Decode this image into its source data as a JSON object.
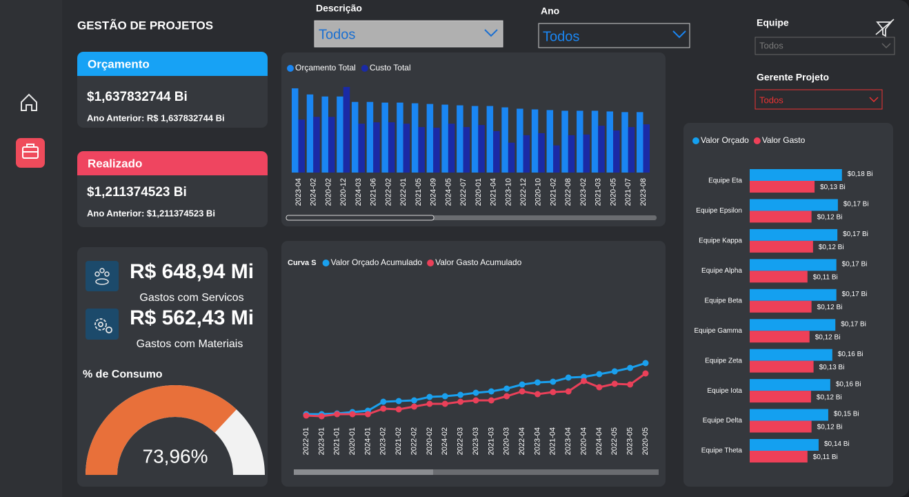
{
  "header": {
    "title": "GESTÃO DE PROJETOS"
  },
  "filters": [
    {
      "label": "Descrição",
      "value": "Todos"
    },
    {
      "label": "Ano",
      "value": "Todos"
    },
    {
      "label": "Equipe",
      "value": "Todos"
    },
    {
      "label": "Gerente Projeto",
      "value": "Todos"
    }
  ],
  "kpis": {
    "orcamento": {
      "title": "Orçamento",
      "value": "$1,637832744 Bi",
      "previous": "Ano Anterior: R$ 1,637832744 Bi"
    },
    "realizado": {
      "title": "Realizado",
      "value": "$1,211374523 Bi",
      "previous": "Ano Anterior: $1,211374523 Bi"
    },
    "servicos": {
      "value": "R$ 648,94 Mi",
      "label": "Gastos com Servicos"
    },
    "materiais": {
      "value": "R$ 562,43 Mi",
      "label": "Gastos com Materiais"
    }
  },
  "chart_data": [
    {
      "type": "bar",
      "legend": "top-left",
      "categories": [
        "2023-04",
        "2024-02",
        "2020-02",
        "2020-12",
        "2024-03",
        "2021-06",
        "2022-02",
        "2022-01",
        "2021-05",
        "2024-09",
        "2024-05",
        "2022-07",
        "2020-01",
        "2021-04",
        "2023-10",
        "2022-12",
        "2020-10",
        "2021-02",
        "2022-08",
        "2023-02",
        "2021-03",
        "2020-05",
        "2021-07",
        "2023-08"
      ],
      "series": [
        {
          "name": "Orçamento Total",
          "color": "#1a86f2",
          "values": [
            124,
            115,
            112,
            112,
            104,
            104,
            103,
            103,
            102,
            101,
            100,
            99,
            98,
            98,
            96,
            94,
            93,
            92,
            91,
            91,
            91,
            90,
            89,
            89
          ]
        },
        {
          "name": "Custo Total",
          "color": "#1a2aa6",
          "values": [
            78,
            82,
            82,
            126,
            72,
            74,
            74,
            72,
            67,
            66,
            72,
            67,
            70,
            61,
            44,
            55,
            58,
            40,
            55,
            56,
            69,
            62,
            67,
            71
          ]
        }
      ]
    },
    {
      "type": "line",
      "title": "Curva S",
      "legend": "top-left",
      "categories": [
        "2022-01",
        "2023-01",
        "2021-01",
        "2020-01",
        "2024-01",
        "2023-02",
        "2021-02",
        "2022-02",
        "2020-02",
        "2024-02",
        "2022-03",
        "2023-03",
        "2021-03",
        "2020-03",
        "2022-04",
        "2023-04",
        "2021-04",
        "2023-04",
        "2020-04",
        "2024-04",
        "2022-05",
        "2023-05",
        "2020-05"
      ],
      "series": [
        {
          "name": "Valor Orçado Acumulado",
          "color": "#1aa0ee",
          "values": [
            20,
            20,
            21,
            23,
            25,
            38,
            39,
            40,
            45,
            46,
            48,
            51,
            53,
            57,
            63,
            66,
            67,
            73,
            74,
            78,
            82,
            87,
            94
          ]
        },
        {
          "name": "Valor Gasto Acumulado",
          "color": "#ea4059",
          "values": [
            18,
            17,
            20,
            20,
            20,
            28,
            27,
            31,
            35,
            35,
            38,
            40,
            40,
            46,
            53,
            49,
            52,
            53,
            68,
            59,
            64,
            63,
            79
          ]
        }
      ]
    },
    {
      "type": "gauge",
      "title": "% de Consumo",
      "value": 73.96,
      "value_label": "73,96%",
      "range": [
        0,
        100
      ],
      "colors": [
        "#e8703a",
        "#f2f2f2"
      ]
    },
    {
      "type": "hbar",
      "legend": "top-left",
      "categories": [
        "Equipe Eta",
        "Equipe Epsilon",
        "Equipe Kappa",
        "Equipe Alpha",
        "Equipe Beta",
        "Equipe Gamma",
        "Equipe Zeta",
        "Equipe Iota",
        "Equipe Delta",
        "Equipe Theta"
      ],
      "series": [
        {
          "name": "Valor Orçado",
          "color": "#14a0f0",
          "values": [
            0.182,
            0.174,
            0.173,
            0.171,
            0.171,
            0.169,
            0.163,
            0.159,
            0.155,
            0.136
          ],
          "value_labels": [
            "$0,18 Bi",
            "$0,17 Bi",
            "$0,17 Bi",
            "$0,17 Bi",
            "$0,17 Bi",
            "$0,17 Bi",
            "$0,16 Bi",
            "$0,16 Bi",
            "$0,15 Bi",
            "$0,14 Bi"
          ]
        },
        {
          "name": "Valor Gasto",
          "color": "#ee4058",
          "values": [
            0.128,
            0.122,
            0.125,
            0.114,
            0.122,
            0.118,
            0.126,
            0.121,
            0.122,
            0.114
          ],
          "value_labels": [
            "$0,13 Bi",
            "$0,12 Bi",
            "$0,12 Bi",
            "$0,11 Bi",
            "$0,12 Bi",
            "$0,12 Bi",
            "$0,13 Bi",
            "$0,12 Bi",
            "$0,12 Bi",
            "$0,11 Bi"
          ]
        }
      ]
    }
  ]
}
